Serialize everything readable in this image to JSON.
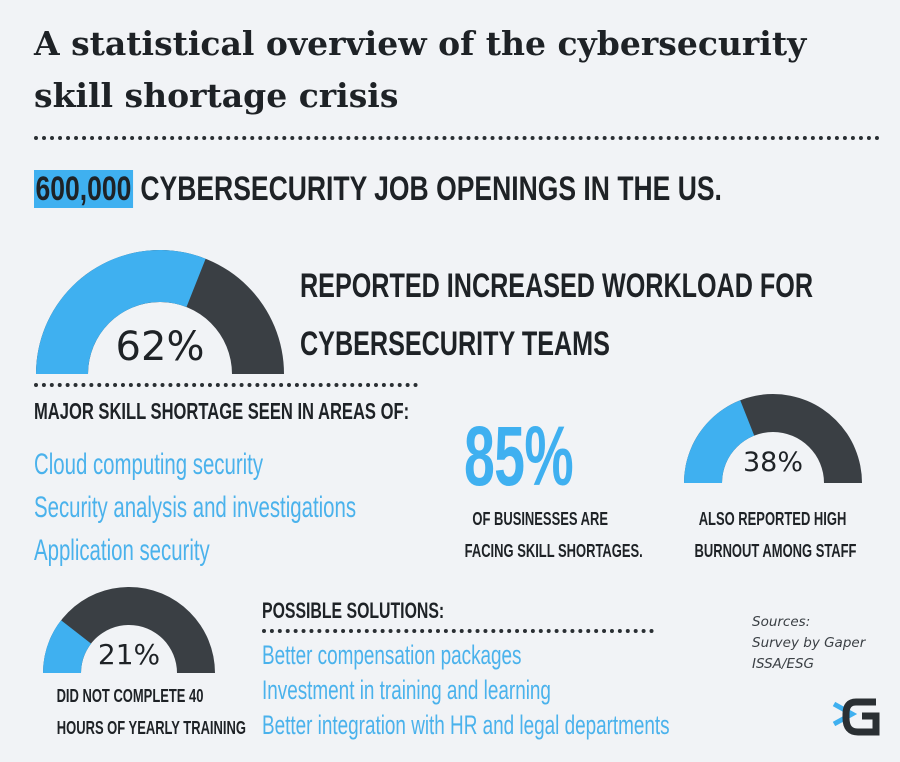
{
  "title_line1": "A statistical overview of the cybersecurity",
  "title_line2": "skill shortage crisis",
  "job_openings": {
    "number": "600,000",
    "text": " CYBERSECURITY JOB OPENINGS IN THE US."
  },
  "workload": {
    "percent_label": "62%",
    "percent_value": 62,
    "line1": "REPORTED INCREASED WORKLOAD FOR",
    "line2": "CYBERSECURITY TEAMS"
  },
  "shortage": {
    "heading": "MAJOR SKILL SHORTAGE SEEN IN AREAS OF:",
    "areas": [
      "Cloud computing security",
      "Security analysis and investigations",
      "Application security"
    ]
  },
  "businesses": {
    "percent_label": "85%",
    "line1": "OF BUSINESSES ARE",
    "line2": "FACING SKILL SHORTAGES."
  },
  "burnout": {
    "percent_label": "38%",
    "percent_value": 38,
    "line1": "ALSO REPORTED HIGH",
    "line2": "BURNOUT AMONG STAFF"
  },
  "training": {
    "percent_label": "21%",
    "percent_value": 21,
    "line1": "DID NOT COMPLETE 40",
    "line2": "HOURS OF YEARLY TRAINING"
  },
  "solutions": {
    "heading": "POSSIBLE SOLUTIONS:",
    "items": [
      "Better compensation packages",
      "Investment in training and learning",
      "Better integration with HR and legal departments"
    ]
  },
  "sources": {
    "heading": "Sources:",
    "lines": [
      "Survey by Gaper",
      "ISSA/ESG"
    ]
  },
  "colors": {
    "accent": "#3fb0f0",
    "dark": "#3a3f44",
    "background": "#f1f3f6"
  }
}
